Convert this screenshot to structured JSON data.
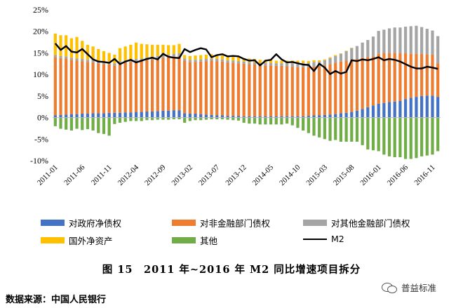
{
  "chart_data": {
    "type": "bar",
    "stacked": true,
    "ylim": [
      -10,
      25
    ],
    "yticks": [
      "-10%",
      "-5%",
      "0%",
      "5%",
      "10%",
      "15%",
      "20%",
      "25%"
    ],
    "ytick_values": [
      -10,
      -5,
      0,
      5,
      10,
      15,
      20,
      25
    ],
    "xtick_labels": [
      "2011-01",
      "2011-06",
      "2011-11",
      "2012-04",
      "2012-09",
      "2013-02",
      "2013-07",
      "2013-12",
      "2014-05",
      "2014-10",
      "2015-03",
      "2015-08",
      "2016-01",
      "2016-06",
      "2016-11"
    ],
    "months": 72,
    "start": "2011-01",
    "series": [
      {
        "name": "对政府净债权",
        "color": "#4472C4",
        "values": [
          0.5,
          0.6,
          0.7,
          0.8,
          0.8,
          0.9,
          0.9,
          1.0,
          1.0,
          1.0,
          1.1,
          1.1,
          1.1,
          1.2,
          1.2,
          1.3,
          1.3,
          1.4,
          1.4,
          1.5,
          1.6,
          1.6,
          1.7,
          1.7,
          1.0,
          0.9,
          0.9,
          0.8,
          0.7,
          0.6,
          0.5,
          0.5,
          0.4,
          0.4,
          0.4,
          0.3,
          0.3,
          0.3,
          0.3,
          0.3,
          0.3,
          0.3,
          0.3,
          0.3,
          0.3,
          0.3,
          0.3,
          0.4,
          0.5,
          0.5,
          0.6,
          0.7,
          0.8,
          1.0,
          1.1,
          1.3,
          1.6,
          2.0,
          2.4,
          2.8,
          3.2,
          3.4,
          3.6,
          3.7,
          3.9,
          4.3,
          4.6,
          4.8,
          5.0,
          5.1,
          5.1,
          4.8
        ]
      },
      {
        "name": "对非金融部门债权",
        "color": "#ED7D31",
        "values": [
          13.5,
          13.2,
          13.0,
          12.6,
          12.4,
          12.2,
          12.0,
          11.8,
          11.6,
          11.4,
          11.2,
          11.0,
          11.5,
          11.6,
          11.7,
          11.8,
          11.9,
          12.0,
          12.1,
          12.2,
          12.3,
          12.4,
          12.5,
          12.6,
          12.2,
          12.0,
          12.0,
          12.2,
          12.4,
          12.6,
          12.6,
          12.5,
          12.4,
          12.3,
          12.2,
          12.2,
          12.1,
          12.0,
          11.9,
          11.8,
          11.8,
          11.7,
          11.7,
          11.6,
          11.5,
          11.4,
          11.4,
          11.3,
          11.3,
          11.4,
          11.5,
          11.7,
          11.9,
          12.0,
          12.1,
          12.2,
          12.0,
          11.8,
          11.6,
          11.4,
          11.6,
          11.6,
          11.3,
          11.3,
          11.0,
          10.6,
          10.2,
          10.0,
          9.8,
          9.6,
          9.5,
          7.8
        ]
      },
      {
        "name": "对其他金融部门债权",
        "color": "#A5A5A5",
        "values": [
          0.5,
          0.5,
          0.5,
          0.5,
          0.5,
          0.5,
          0.5,
          0.5,
          0.5,
          0.5,
          0.5,
          0.5,
          0.5,
          0.5,
          0.5,
          0.5,
          0.5,
          0.6,
          0.6,
          0.6,
          0.6,
          0.6,
          0.6,
          0.6,
          0.5,
          0.5,
          0.5,
          0.5,
          0.5,
          0.5,
          0.5,
          0.5,
          0.5,
          0.5,
          0.5,
          0.5,
          0.5,
          0.5,
          0.5,
          0.6,
          0.6,
          0.6,
          0.6,
          0.7,
          0.8,
          0.9,
          1.0,
          1.0,
          1.1,
          1.1,
          1.2,
          1.4,
          1.6,
          1.8,
          2.2,
          2.6,
          3.0,
          3.6,
          4.0,
          4.6,
          5.3,
          5.4,
          5.8,
          5.9,
          6.0,
          6.2,
          6.4,
          6.5,
          6.2,
          5.9,
          5.6,
          6.3
        ]
      },
      {
        "name": "国外净资产",
        "color": "#FFC000",
        "values": [
          5.0,
          4.8,
          4.9,
          4.5,
          5.0,
          4.2,
          3.5,
          3.2,
          2.8,
          2.5,
          2.2,
          2.0,
          3.0,
          3.2,
          3.5,
          3.8,
          3.4,
          3.0,
          2.8,
          2.6,
          2.4,
          2.2,
          2.0,
          2.2,
          0.8,
          0.9,
          1.0,
          1.0,
          1.0,
          1.0,
          1.0,
          0.9,
          0.9,
          0.9,
          0.9,
          0.8,
          0.8,
          0.8,
          0.7,
          0.7,
          0.7,
          0.6,
          0.6,
          0.6,
          0.6,
          0.6,
          0.5,
          0.4,
          0.4,
          0.3,
          0.2,
          0.2,
          0.2,
          0.1,
          0.1,
          0.1,
          0.0,
          0.0,
          0.0,
          0.0,
          0.0,
          0.0,
          0.0,
          0.0,
          0.0,
          0.0,
          0.0,
          0.0,
          0.0,
          0.0,
          0.0,
          0.0
        ]
      },
      {
        "name": "其他",
        "color": "#70AD47",
        "values": [
          -2.0,
          -2.6,
          -2.8,
          -3.0,
          -2.6,
          -2.9,
          -2.7,
          -3.0,
          -3.6,
          -3.8,
          -4.2,
          -1.5,
          -1.2,
          -1.0,
          -0.8,
          -0.8,
          -0.8,
          -0.6,
          -0.6,
          -0.5,
          -0.5,
          -0.5,
          -0.4,
          -0.4,
          -1.2,
          -0.8,
          -0.6,
          -0.6,
          -0.5,
          -0.4,
          -0.4,
          -0.4,
          -0.5,
          -0.6,
          -0.7,
          -1.2,
          -1.4,
          -1.4,
          -1.6,
          -1.6,
          -1.6,
          -1.6,
          -1.6,
          -1.4,
          -1.8,
          -2.4,
          -3.0,
          -3.6,
          -4.2,
          -4.6,
          -5.0,
          -5.4,
          -5.2,
          -5.6,
          -5.6,
          -5.6,
          -5.6,
          -6.4,
          -7.4,
          -7.6,
          -7.8,
          -8.6,
          -9.0,
          -9.2,
          -9.2,
          -9.6,
          -9.6,
          -9.4,
          -9.0,
          -8.8,
          -8.6,
          -7.8
        ]
      }
    ],
    "line": {
      "name": "M2",
      "color": "#000000",
      "values": [
        17.2,
        15.7,
        16.6,
        15.3,
        15.1,
        15.9,
        14.7,
        13.5,
        13.0,
        12.9,
        12.7,
        13.6,
        12.4,
        13.0,
        13.4,
        12.8,
        13.2,
        13.6,
        13.9,
        13.5,
        14.8,
        14.1,
        13.9,
        13.8,
        15.9,
        15.2,
        15.7,
        16.1,
        15.8,
        14.0,
        14.5,
        14.7,
        14.2,
        14.3,
        14.2,
        13.6,
        13.2,
        13.3,
        12.1,
        13.2,
        13.4,
        14.7,
        13.5,
        12.8,
        12.9,
        12.6,
        12.3,
        12.2,
        10.8,
        12.5,
        11.6,
        10.1,
        10.8,
        10.2,
        10.6,
        13.3,
        13.1,
        13.5,
        13.3,
        13.6,
        14.0,
        13.3,
        13.6,
        13.4,
        13.0,
        12.4,
        11.8,
        11.4,
        11.4,
        11.8,
        11.6,
        11.3
      ]
    }
  },
  "legend": {
    "gov": "对政府净债权",
    "nonfin": "对非金融部门债权",
    "otherfin": "对其他金融部门债权",
    "foreign": "国外净资产",
    "other": "其他",
    "m2": "M2"
  },
  "caption": "图 15　2011 年~2016 年 M2 同比增速项目拆分",
  "source": "数据来源：中国人民银行",
  "brand": "普益标准"
}
